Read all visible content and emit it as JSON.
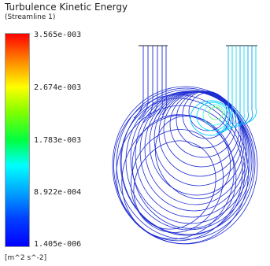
{
  "chart_data": {
    "type": "heatmap",
    "title": "Turbulence Kinetic Energy",
    "subtitle": "(Streamline 1)",
    "legend": {
      "ticks": [
        "3.565e-003",
        "2.674e-003",
        "1.783e-003",
        "8.922e-004",
        "1.405e-006"
      ],
      "min": 1.405e-06,
      "max": 0.003565,
      "units": "[m^2 s^-2]",
      "colormap": [
        "#ff0000",
        "#ffff00",
        "#00ff40",
        "#00ffff",
        "#0000ff"
      ]
    }
  }
}
